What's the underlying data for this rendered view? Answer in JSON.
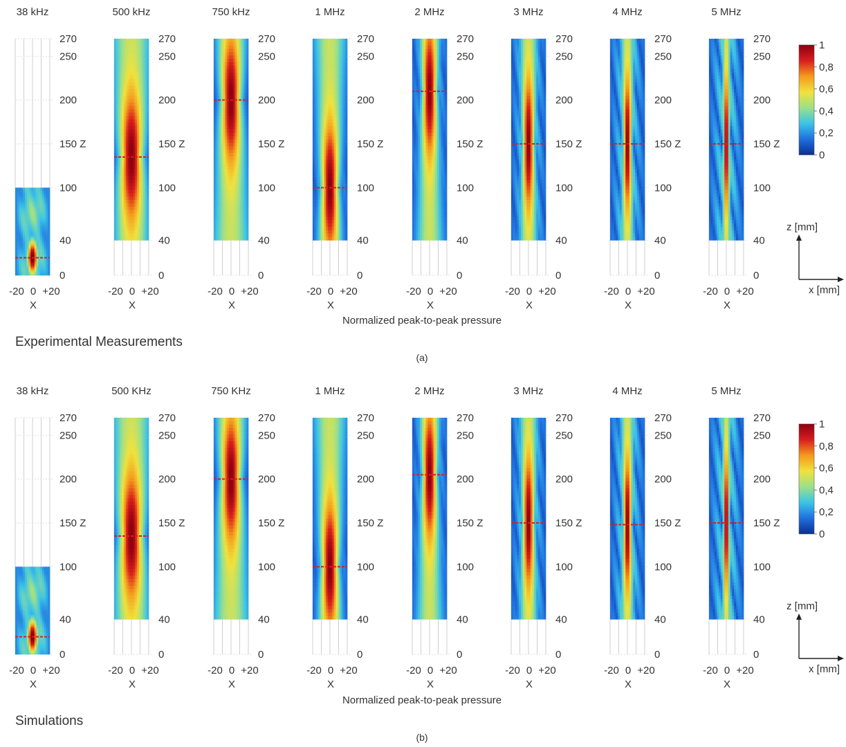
{
  "figure": {
    "colorbar_ticks": [
      "1",
      "0,8",
      "0,6",
      "0,4",
      "0,2",
      "0"
    ],
    "colorbar_levels": [
      1,
      0.8,
      0.6,
      0.4,
      0.2,
      0
    ],
    "colormap": [
      "#0b2f8f",
      "#1f6fe0",
      "#3cc4e6",
      "#9be08a",
      "#f0e23c",
      "#f59a1e",
      "#d81e1e",
      "#8e0010"
    ],
    "focal_marker_color": "#d42020",
    "axes_key": {
      "z_label": "z [mm]",
      "x_label": "x [mm]"
    }
  },
  "chart_data": [
    {
      "type": "heatmap",
      "panel": "(a)",
      "group_label": "Experimental Measurements",
      "xlabel": "Normalized peak-to-peak pressure",
      "z_ticks": [
        "270",
        "250",
        "200",
        "150 Z",
        "100",
        "40",
        "0"
      ],
      "z_tick_values": [
        270,
        250,
        200,
        150,
        100,
        40,
        0
      ],
      "x_ticks": [
        "-20",
        "0",
        "+20"
      ],
      "x_axis_label": "X",
      "plots": [
        {
          "title": "38 kHz",
          "z_range": [
            0,
            100
          ],
          "focus_z": 20
        },
        {
          "title": "500 kHz",
          "z_range": [
            40,
            270
          ],
          "focus_z": 135
        },
        {
          "title": "750 kHz",
          "z_range": [
            40,
            270
          ],
          "focus_z": 200
        },
        {
          "title": "1 MHz",
          "z_range": [
            40,
            270
          ],
          "focus_z": 100
        },
        {
          "title": "2 MHz",
          "z_range": [
            40,
            270
          ],
          "focus_z": 210
        },
        {
          "title": "3 MHz",
          "z_range": [
            40,
            270
          ],
          "focus_z": 150
        },
        {
          "title": "4 MHz",
          "z_range": [
            40,
            270
          ],
          "focus_z": 150
        },
        {
          "title": "5 MHz",
          "z_range": [
            40,
            270
          ],
          "focus_z": 150
        }
      ]
    },
    {
      "type": "heatmap",
      "panel": "(b)",
      "group_label": "Simulations",
      "xlabel": "Normalized peak-to-peak pressure",
      "z_ticks": [
        "270",
        "250",
        "200",
        "150 Z",
        "100",
        "40",
        "0"
      ],
      "z_tick_values": [
        270,
        250,
        200,
        150,
        100,
        40,
        0
      ],
      "x_ticks": [
        "-20",
        "0",
        "+20"
      ],
      "x_axis_label": "X",
      "plots": [
        {
          "title": "38 kHz",
          "z_range": [
            0,
            100
          ],
          "focus_z": 20
        },
        {
          "title": "500 KHz",
          "z_range": [
            40,
            270
          ],
          "focus_z": 135
        },
        {
          "title": "750 KHz",
          "z_range": [
            40,
            270
          ],
          "focus_z": 200
        },
        {
          "title": "1 MHz",
          "z_range": [
            40,
            270
          ],
          "focus_z": 100
        },
        {
          "title": "2 MHz",
          "z_range": [
            40,
            270
          ],
          "focus_z": 205
        },
        {
          "title": "3 MHz",
          "z_range": [
            40,
            270
          ],
          "focus_z": 150
        },
        {
          "title": "4 MHz",
          "z_range": [
            40,
            270
          ],
          "focus_z": 148
        },
        {
          "title": "5 MHz",
          "z_range": [
            40,
            270
          ],
          "focus_z": 150
        }
      ]
    }
  ]
}
